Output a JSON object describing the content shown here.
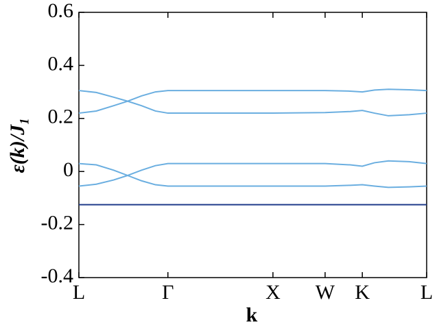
{
  "chart_data": {
    "type": "line",
    "xlabel": "k",
    "ylabel": "ε(k)/J₁",
    "x": [
      0,
      0.05,
      0.1,
      0.14,
      0.18,
      0.22,
      0.256,
      0.4,
      0.558,
      0.708,
      0.78,
      0.815,
      0.85,
      0.89,
      0.95,
      1.0
    ],
    "xlim": [
      0,
      1.0
    ],
    "xticks": [
      {
        "value": 0,
        "label": "L"
      },
      {
        "value": 0.256,
        "label": "Γ"
      },
      {
        "value": 0.558,
        "label": "X"
      },
      {
        "value": 0.708,
        "label": "W"
      },
      {
        "value": 0.815,
        "label": "K"
      },
      {
        "value": 1.0,
        "label": "L"
      }
    ],
    "ylim": [
      -0.4,
      0.6
    ],
    "yticks": [
      -0.4,
      -0.2,
      0,
      0.2,
      0.4,
      0.6
    ],
    "grid": false,
    "series": [
      {
        "color": "#6aaee0",
        "values": [
          0.305,
          0.298,
          0.28,
          0.265,
          0.248,
          0.228,
          0.22,
          0.22,
          0.22,
          0.222,
          0.226,
          0.23,
          0.22,
          0.21,
          0.214,
          0.22
        ]
      },
      {
        "color": "#6aaee0",
        "values": [
          0.22,
          0.228,
          0.248,
          0.265,
          0.285,
          0.3,
          0.305,
          0.305,
          0.305,
          0.305,
          0.303,
          0.3,
          0.307,
          0.31,
          0.308,
          0.305
        ]
      },
      {
        "color": "#6aaee0",
        "values": [
          0.03,
          0.025,
          0.005,
          -0.015,
          -0.035,
          -0.05,
          -0.055,
          -0.055,
          -0.055,
          -0.055,
          -0.052,
          -0.05,
          -0.055,
          -0.06,
          -0.058,
          -0.055
        ]
      },
      {
        "color": "#6aaee0",
        "values": [
          -0.055,
          -0.048,
          -0.032,
          -0.015,
          0.005,
          0.022,
          0.03,
          0.03,
          0.03,
          0.03,
          0.025,
          0.02,
          0.033,
          0.04,
          0.037,
          0.03
        ]
      },
      {
        "color": "#1f3a8a",
        "values": [
          -0.125,
          -0.125,
          -0.125,
          -0.125,
          -0.125,
          -0.125,
          -0.125,
          -0.125,
          -0.125,
          -0.125,
          -0.125,
          -0.125,
          -0.125,
          -0.125,
          -0.125,
          -0.125
        ]
      }
    ]
  }
}
